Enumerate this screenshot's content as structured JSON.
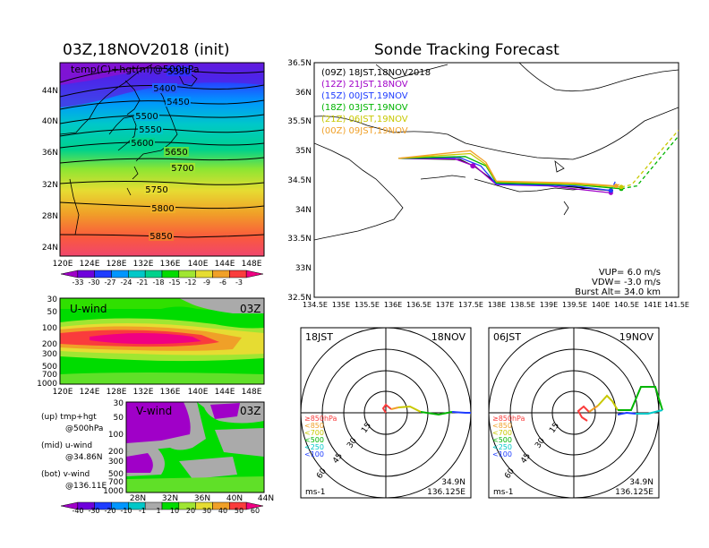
{
  "left_title": "03Z,18NOV2018 (init)",
  "right_title": "Sonde Tracking Forecast",
  "map_panel": {
    "overlay_label": "temp(C)+hgt(m)@500hPa",
    "contour_labels": [
      "5350",
      "5400",
      "5450",
      "5500",
      "5550",
      "5600",
      "5650",
      "5700",
      "5750",
      "5800",
      "5850"
    ],
    "lat_ticks": [
      "44N",
      "40N",
      "36N",
      "32N",
      "28N",
      "24N"
    ],
    "lon_ticks": [
      "120E",
      "124E",
      "128E",
      "132E",
      "136E",
      "140E",
      "144E",
      "148E"
    ],
    "colorbar_labels": [
      "-33",
      "-30",
      "-27",
      "-24",
      "-21",
      "-18",
      "-15",
      "-12",
      "-9",
      "-6",
      "-3"
    ],
    "colorbar_colors": [
      "#a000c8",
      "#6e00dc",
      "#1e3cff",
      "#0096ff",
      "#00c8c8",
      "#00d28c",
      "#00dc00",
      "#a0e632",
      "#e6dc32",
      "#f0a028",
      "#fa3c3c",
      "#f00082"
    ]
  },
  "uwind_panel": {
    "title": "U-wind",
    "time": "03Z",
    "p_ticks": [
      "30",
      "50",
      "100",
      "200",
      "300",
      "500",
      "700",
      "1000"
    ],
    "lon_ticks": [
      "120E",
      "124E",
      "128E",
      "132E",
      "136E",
      "140E",
      "144E",
      "148E"
    ]
  },
  "vwind_panel": {
    "title": "V-wind",
    "time": "03Z",
    "p_ticks": [
      "30",
      "50",
      "100",
      "200",
      "300",
      "500",
      "700",
      "1000"
    ],
    "lat_ticks": [
      "28N",
      "32N",
      "36N",
      "40N",
      "44N"
    ]
  },
  "legend_text": {
    "l1a": "(up) tmp+hgt",
    "l1b": "@500hPa",
    "l2a": "(mid) u-wind",
    "l2b": "@34.86N",
    "l3a": "(bot) v-wind",
    "l3b": "@136.11E"
  },
  "wind_colorbar": {
    "labels": [
      "-40",
      "-30",
      "-20",
      "-10",
      "-1",
      "1",
      "10",
      "20",
      "30",
      "40",
      "50",
      "60"
    ],
    "colors": [
      "#a000c8",
      "#6e00dc",
      "#1e3cff",
      "#0096ff",
      "#00c8c8",
      "#aaaaaa",
      "#00dc00",
      "#a0e632",
      "#e6dc32",
      "#f0a028",
      "#fa3c3c",
      "#f00082"
    ]
  },
  "track_panel": {
    "legend": [
      {
        "label": "(09Z) 18JST,18NOV2018",
        "color": "#000000"
      },
      {
        "label": "(12Z) 21JST,18NOV",
        "color": "#a000c8"
      },
      {
        "label": "(15Z) 00JST,19NOV",
        "color": "#1e3cff"
      },
      {
        "label": "(18Z) 03JST,19NOV",
        "color": "#00b400"
      },
      {
        "label": "(21Z) 06JST,19NOV",
        "color": "#c8c800"
      },
      {
        "label": "(00Z) 09JST,19NOV",
        "color": "#f0a028"
      }
    ],
    "lat_ticks": [
      "36.5N",
      "36N",
      "35.5N",
      "35N",
      "34.5N",
      "34N",
      "33.5N",
      "33N",
      "32.5N"
    ],
    "lon_ticks": [
      "134.5E",
      "135E",
      "135.5E",
      "136E",
      "136.5E",
      "137E",
      "137.5E",
      "138E",
      "138.5E",
      "139E",
      "139.5E",
      "140E",
      "140.5E",
      "141E",
      "141.5E"
    ],
    "vup": "VUP= 6.0 m/s",
    "vdw": "VDW= -3.0 m/s",
    "burst": "Burst Alt= 34.0 km"
  },
  "hodo_left": {
    "time": "18JST",
    "date": "18NOV",
    "ring_labels": [
      "15",
      "30",
      "45",
      "60"
    ],
    "levels": [
      {
        "label": "≥850hPa",
        "color": "#fa3c3c"
      },
      {
        "label": "<850",
        "color": "#f0a028"
      },
      {
        "label": "<700",
        "color": "#c8c800"
      },
      {
        "label": "<500",
        "color": "#00b400"
      },
      {
        "label": "<250",
        "color": "#00c8c8"
      },
      {
        "label": "<100",
        "color": "#1e3cff"
      }
    ],
    "lat": "34.9N",
    "lon": "136.125E",
    "unit": "ms-1"
  },
  "hodo_right": {
    "time": "06JST",
    "date": "19NOV",
    "ring_labels": [
      "15",
      "30",
      "45",
      "60"
    ],
    "levels": [
      {
        "label": "≥850hPa",
        "color": "#fa3c3c"
      },
      {
        "label": "<850",
        "color": "#f0a028"
      },
      {
        "label": "<700",
        "color": "#c8c800"
      },
      {
        "label": "<500",
        "color": "#00b400"
      },
      {
        "label": "<250",
        "color": "#00c8c8"
      },
      {
        "label": "<100",
        "color": "#1e3cff"
      }
    ],
    "lat": "34.9N",
    "lon": "136.125E",
    "unit": "ms-1"
  },
  "chart_data": [
    {
      "type": "heatmap",
      "title": "03Z,18NOV2018 (init)",
      "field": "temp(C)+hgt(m)@500hPa",
      "x_range": [
        120,
        150
      ],
      "y_range": [
        22,
        48
      ],
      "colorbar": [
        -33,
        -30,
        -27,
        -24,
        -21,
        -18,
        -15,
        -12,
        -9,
        -6,
        -3
      ],
      "contours": [
        5350,
        5400,
        5450,
        5500,
        5550,
        5600,
        5650,
        5700,
        5750,
        5800,
        5850
      ]
    },
    {
      "type": "heatmap",
      "title": "U-wind",
      "x_range": [
        120,
        150
      ],
      "y_ticks": [
        30,
        50,
        100,
        200,
        300,
        500,
        700,
        1000
      ],
      "max_region": {
        "lon": [
          126,
          138
        ],
        "p": [
          180,
          280
        ]
      }
    },
    {
      "type": "heatmap",
      "title": "V-wind",
      "x_range": [
        28,
        44
      ],
      "y_ticks": [
        30,
        50,
        100,
        200,
        300,
        500,
        700,
        1000
      ]
    },
    {
      "type": "line",
      "title": "Sonde Tracking Forecast",
      "x_range": [
        134.5,
        141.5
      ],
      "y_range": [
        32.5,
        36.5
      ],
      "series": [
        {
          "name": "(09Z) 18JST,18NOV2018",
          "color": "#000000",
          "points": [
            [
              136.12,
              34.87
            ],
            [
              137.3,
              34.85
            ],
            [
              137.6,
              34.72
            ],
            [
              138.0,
              34.45
            ],
            [
              139.0,
              34.42
            ],
            [
              140.2,
              34.32
            ]
          ]
        },
        {
          "name": "(12Z) 21JST,18NOV",
          "color": "#a000c8",
          "points": [
            [
              136.12,
              34.87
            ],
            [
              137.2,
              34.86
            ],
            [
              137.6,
              34.73
            ],
            [
              138.0,
              34.42
            ],
            [
              139.0,
              34.4
            ],
            [
              140.2,
              34.28
            ]
          ]
        },
        {
          "name": "(15Z) 00JST,19NOV",
          "color": "#1e3cff",
          "points": [
            [
              136.12,
              34.87
            ],
            [
              137.3,
              34.88
            ],
            [
              137.7,
              34.74
            ],
            [
              138.0,
              34.43
            ],
            [
              139.5,
              34.4
            ],
            [
              140.2,
              34.32
            ],
            [
              140.3,
              34.5
            ]
          ]
        },
        {
          "name": "(18Z) 03JST,19NOV",
          "color": "#00b400",
          "points": [
            [
              136.12,
              34.87
            ],
            [
              137.4,
              34.9
            ],
            [
              137.8,
              34.74
            ],
            [
              138.0,
              34.45
            ],
            [
              139.5,
              34.42
            ],
            [
              140.4,
              34.35
            ],
            [
              140.7,
              34.4
            ],
            [
              141.5,
              35.25
            ]
          ]
        },
        {
          "name": "(21Z) 06JST,19NOV",
          "color": "#c8c800",
          "points": [
            [
              136.12,
              34.87
            ],
            [
              137.5,
              34.95
            ],
            [
              137.8,
              34.76
            ],
            [
              138.0,
              34.47
            ],
            [
              139.5,
              34.43
            ],
            [
              140.4,
              34.38
            ],
            [
              140.6,
              34.42
            ],
            [
              141.5,
              35.35
            ]
          ]
        },
        {
          "name": "(00Z) 09JST,19NOV",
          "color": "#f0a028",
          "points": [
            [
              136.12,
              34.87
            ],
            [
              137.5,
              35.0
            ],
            [
              137.8,
              34.8
            ],
            [
              138.0,
              34.48
            ],
            [
              139.5,
              34.45
            ],
            [
              140.3,
              34.4
            ],
            [
              140.4,
              34.44
            ]
          ]
        }
      ]
    }
  ]
}
